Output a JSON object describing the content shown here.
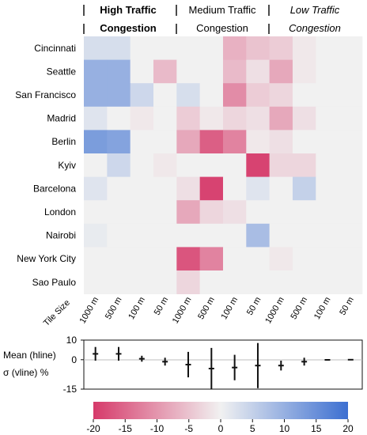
{
  "chart_data": {
    "type": "heatmap",
    "group_headers": [
      {
        "line1": "High Traffic",
        "line2": "Congestion",
        "style": "bold"
      },
      {
        "line1": "Medium Traffic",
        "line2": "Congestion",
        "style": "normal"
      },
      {
        "line1": "Low Traffic",
        "line2": "Congestion",
        "style": "italic"
      }
    ],
    "row_axis_label": "Tile Size",
    "rows": [
      "Cincinnati",
      "Seattle",
      "San Francisco",
      "Madrid",
      "Berlin",
      "Kyiv",
      "Barcelona",
      "London",
      "Nairobi",
      "New York City",
      "Sao Paulo"
    ],
    "columns": [
      "1000 m",
      "500 m",
      "100 m",
      "50 m",
      "1000 m",
      "500 m",
      "100 m",
      "50 m",
      "1000 m",
      "500 m",
      "100 m",
      "50 m"
    ],
    "values": [
      [
        3,
        3,
        0,
        0,
        0,
        0,
        -7,
        -5,
        -4,
        -1,
        0,
        0
      ],
      [
        10,
        10,
        0,
        -6,
        0,
        0,
        -6,
        -2,
        -8,
        -1,
        0,
        0
      ],
      [
        10,
        10,
        4,
        0,
        3,
        0,
        -11,
        -4,
        -3,
        0,
        0,
        0
      ],
      [
        2,
        0,
        -1,
        0,
        -4,
        -1,
        -3,
        -2,
        -8,
        -2,
        0,
        0
      ],
      [
        13,
        12,
        0,
        0,
        -8,
        -16,
        -12,
        -1,
        -2,
        0,
        0,
        0
      ],
      [
        0,
        4,
        0,
        -1,
        0,
        0,
        0,
        -19,
        -3,
        -3,
        0,
        0
      ],
      [
        2,
        0,
        0,
        0,
        -2,
        -19,
        0,
        2,
        0,
        5,
        0,
        0
      ],
      [
        0,
        0,
        0,
        0,
        -8,
        -3,
        -2,
        0,
        0,
        0,
        0,
        0
      ],
      [
        1,
        0,
        0,
        0,
        0,
        0,
        0,
        8,
        0,
        0,
        0,
        0
      ],
      [
        0,
        0,
        0,
        0,
        -17,
        -12,
        0,
        0,
        -1,
        0,
        0,
        0
      ],
      [
        0,
        0,
        0,
        0,
        -3,
        0,
        0,
        0,
        0,
        0,
        0,
        0
      ]
    ],
    "summary_panel": {
      "ylabel_line1": "Mean (hline)",
      "ylabel_line2": "σ (vline) %",
      "yticks": [
        10,
        0,
        -15
      ],
      "ylim": [
        -15,
        10
      ],
      "mean": [
        3,
        3,
        0.5,
        -1,
        -2.5,
        -4.5,
        -4,
        -3,
        -3,
        -1,
        -0.1,
        0
      ],
      "sigma": [
        7,
        7,
        3,
        4,
        13,
        21,
        13,
        23,
        5,
        4,
        0.4,
        0.3
      ]
    },
    "colorbar": {
      "min": -20,
      "max": 20,
      "ticks": [
        -20,
        -15,
        -10,
        -5,
        0,
        5,
        10,
        15,
        20
      ],
      "colors": {
        "negative": "#d63a6a",
        "mid": "#f1f1f1",
        "positive": "#3c6fd1"
      }
    }
  }
}
